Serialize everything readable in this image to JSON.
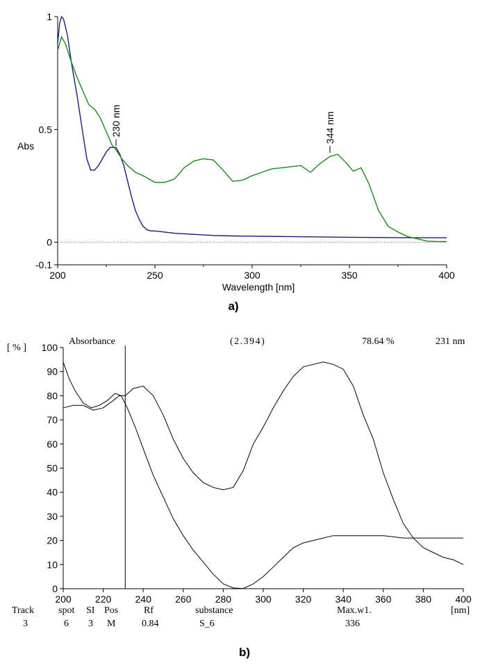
{
  "chart_data": [
    {
      "type": "line",
      "panel_label": "a)",
      "xlabel": "Wavelength [nm]",
      "ylabel": "Abs",
      "xlim": [
        200,
        400
      ],
      "ylim": [
        -0.1,
        1
      ],
      "x_ticks": [
        "200",
        "250",
        "300",
        "350",
        "400"
      ],
      "y_ticks": [
        {
          "value": 1,
          "label": "1"
        },
        {
          "value": 0.5,
          "label": "0.5"
        },
        {
          "value": 0,
          "label": "0"
        },
        {
          "value": -0.1,
          "label": "-0.1"
        }
      ],
      "baseline": 0,
      "series": [
        {
          "color": "#1a1a7a",
          "x": [
            200,
            201,
            202,
            203,
            205,
            207,
            210,
            213,
            215,
            217,
            219,
            221,
            223,
            225,
            227,
            229,
            230,
            232,
            234,
            236,
            238,
            240,
            242,
            244,
            246,
            248,
            250,
            255,
            260,
            270,
            280,
            290,
            300,
            320,
            350,
            380,
            400
          ],
          "y": [
            0.88,
            0.97,
            1.0,
            0.99,
            0.92,
            0.8,
            0.65,
            0.48,
            0.37,
            0.32,
            0.32,
            0.34,
            0.37,
            0.4,
            0.42,
            0.42,
            0.42,
            0.39,
            0.34,
            0.27,
            0.2,
            0.14,
            0.1,
            0.07,
            0.055,
            0.05,
            0.05,
            0.045,
            0.04,
            0.035,
            0.03,
            0.028,
            0.027,
            0.025,
            0.022,
            0.02,
            0.02
          ]
        },
        {
          "color": "#1a8a1a",
          "x": [
            200,
            202,
            204,
            207,
            210,
            213,
            216,
            219,
            222,
            225,
            228,
            230,
            233,
            236,
            240,
            245,
            250,
            255,
            260,
            265,
            270,
            275,
            280,
            285,
            290,
            295,
            300,
            305,
            310,
            315,
            320,
            325,
            330,
            335,
            340,
            344,
            348,
            352,
            356,
            360,
            365,
            370,
            375,
            380,
            385,
            390,
            395,
            400
          ],
          "y": [
            0.85,
            0.91,
            0.88,
            0.8,
            0.73,
            0.67,
            0.61,
            0.59,
            0.55,
            0.49,
            0.43,
            0.41,
            0.37,
            0.34,
            0.31,
            0.29,
            0.265,
            0.265,
            0.28,
            0.33,
            0.36,
            0.37,
            0.365,
            0.32,
            0.27,
            0.275,
            0.295,
            0.31,
            0.325,
            0.33,
            0.335,
            0.34,
            0.31,
            0.35,
            0.38,
            0.39,
            0.355,
            0.315,
            0.33,
            0.26,
            0.14,
            0.07,
            0.045,
            0.025,
            0.015,
            0.005,
            0.003,
            0.003
          ]
        }
      ],
      "annotations": [
        {
          "text": "230 nm",
          "x": 230,
          "y": 0.42
        },
        {
          "text": "344 nm",
          "x": 340,
          "y": 0.39
        }
      ]
    },
    {
      "type": "line",
      "panel_label": "b)",
      "ylabel": "[ % ]",
      "xlabel": "[nm]",
      "xlim": [
        200,
        400
      ],
      "ylim": [
        0,
        100
      ],
      "x_ticks": [
        "200",
        "220",
        "240",
        "260",
        "280",
        "300",
        "320",
        "340",
        "360",
        "380",
        "400"
      ],
      "y_ticks": [
        "0",
        "10",
        "20",
        "30",
        "40",
        "50",
        "60",
        "70",
        "80",
        "90",
        "100"
      ],
      "header": {
        "absorbance_label": "Absorbance",
        "value": "(2.394)",
        "percent": "78.64 %",
        "wavelength": "231 nm"
      },
      "cursor_x": 231,
      "series": [
        {
          "color": "#000000",
          "x": [
            200,
            205,
            210,
            215,
            220,
            225,
            228,
            231,
            235,
            240,
            245,
            250,
            255,
            260,
            265,
            270,
            275,
            280,
            285,
            290,
            295,
            300,
            305,
            310,
            315,
            320,
            325,
            330,
            335,
            340,
            345,
            350,
            355,
            360,
            365,
            370,
            375,
            380,
            385,
            390,
            395,
            400
          ],
          "y": [
            75,
            76,
            76,
            74,
            75,
            78,
            80,
            80,
            83,
            84,
            80,
            72,
            62,
            54,
            48,
            44,
            42,
            41,
            42,
            49,
            60,
            67,
            75,
            82,
            88,
            92,
            93,
            94,
            93,
            91,
            84,
            72,
            62,
            48,
            37,
            27,
            21,
            17,
            15,
            13,
            12,
            10
          ]
        },
        {
          "color": "#000000",
          "x": [
            200,
            203,
            206,
            210,
            214,
            218,
            222,
            226,
            229,
            232,
            236,
            240,
            245,
            250,
            255,
            260,
            265,
            270,
            275,
            280,
            285,
            290,
            295,
            300,
            305,
            310,
            315,
            320,
            325,
            330,
            335,
            340,
            345,
            350,
            355,
            360,
            365,
            370,
            375,
            380,
            385,
            390,
            395,
            400
          ],
          "y": [
            94,
            87,
            82,
            77,
            75,
            76,
            78,
            81,
            80,
            75,
            67,
            58,
            47,
            38,
            29,
            22,
            16,
            11,
            6,
            2,
            0.3,
            0.1,
            2,
            5,
            9,
            13,
            17,
            19,
            20,
            21,
            22,
            22,
            22,
            22,
            22,
            22,
            21.5,
            21,
            21,
            21,
            21,
            21,
            21,
            21
          ]
        }
      ],
      "footer": {
        "headers": [
          "Track",
          "spot",
          "SI",
          "Pos",
          "Rf",
          "substance",
          "Max.w1."
        ],
        "values": [
          "3",
          "6",
          "3",
          "M",
          "0.84",
          "S_6",
          "336"
        ]
      }
    }
  ]
}
